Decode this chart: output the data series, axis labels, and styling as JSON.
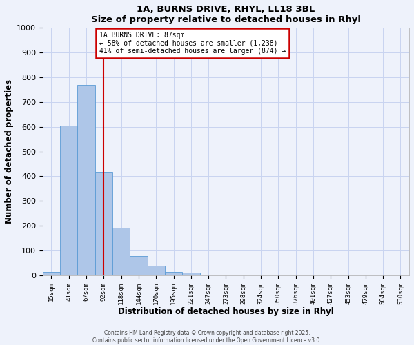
{
  "title": "1A, BURNS DRIVE, RHYL, LL18 3BL",
  "subtitle": "Size of property relative to detached houses in Rhyl",
  "xlabel": "Distribution of detached houses by size in Rhyl",
  "ylabel": "Number of detached properties",
  "bar_labels": [
    "15sqm",
    "41sqm",
    "67sqm",
    "92sqm",
    "118sqm",
    "144sqm",
    "170sqm",
    "195sqm",
    "221sqm",
    "247sqm",
    "273sqm",
    "298sqm",
    "324sqm",
    "350sqm",
    "376sqm",
    "401sqm",
    "427sqm",
    "453sqm",
    "479sqm",
    "504sqm",
    "530sqm"
  ],
  "bar_values": [
    15,
    605,
    770,
    415,
    193,
    78,
    40,
    15,
    10,
    0,
    0,
    0,
    0,
    0,
    0,
    0,
    0,
    0,
    0,
    0,
    0
  ],
  "bar_color": "#aec6e8",
  "bar_edge_color": "#5b9bd5",
  "ylim": [
    0,
    1000
  ],
  "yticks": [
    0,
    100,
    200,
    300,
    400,
    500,
    600,
    700,
    800,
    900,
    1000
  ],
  "vline_pos": 3.0,
  "annotation_line1": "1A BURNS DRIVE: 87sqm",
  "annotation_line2": "← 58% of detached houses are smaller (1,238)",
  "annotation_line3": "41% of semi-detached houses are larger (874) →",
  "annotation_box_color": "#ffffff",
  "annotation_box_edge_color": "#cc0000",
  "vline_color": "#cc0000",
  "footnote1": "Contains HM Land Registry data © Crown copyright and database right 2025.",
  "footnote2": "Contains public sector information licensed under the Open Government Licence v3.0.",
  "bg_color": "#eef2fb",
  "grid_color": "#c8d4f0"
}
